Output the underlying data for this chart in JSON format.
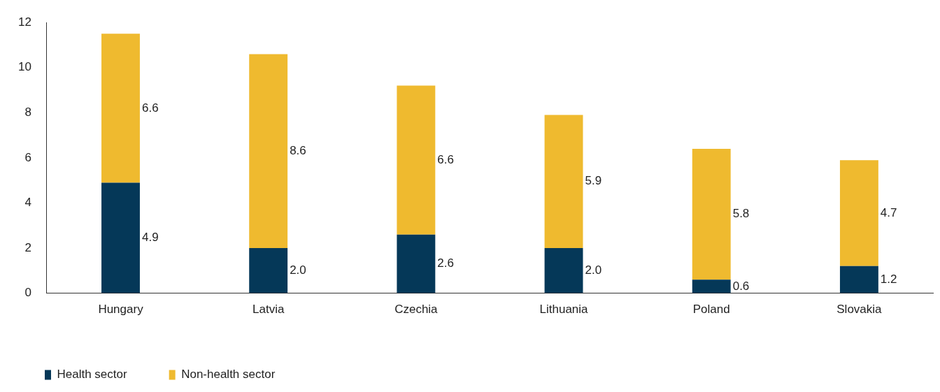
{
  "chart_data": {
    "type": "bar",
    "stacked": true,
    "categories": [
      "Hungary",
      "Latvia",
      "Czechia",
      "Lithuania",
      "Poland",
      "Slovakia"
    ],
    "series": [
      {
        "name": "Health sector",
        "color": "#053858",
        "values": [
          4.9,
          2.0,
          2.6,
          2.0,
          0.6,
          1.2
        ],
        "value_labels": [
          "4.9",
          "2.0",
          "2.6",
          "2.0",
          "0.6",
          "1.2"
        ]
      },
      {
        "name": "Non-health sector",
        "color": "#efba2f",
        "values": [
          6.6,
          8.6,
          6.6,
          5.9,
          5.8,
          4.7
        ],
        "value_labels": [
          "6.6",
          "8.6",
          "6.6",
          "5.9",
          "5.8",
          "4.7"
        ]
      }
    ],
    "ylim": [
      0,
      12
    ],
    "yticks": [
      0,
      2,
      4,
      6,
      8,
      10,
      12
    ],
    "grid": false,
    "legend": "bottom left"
  }
}
